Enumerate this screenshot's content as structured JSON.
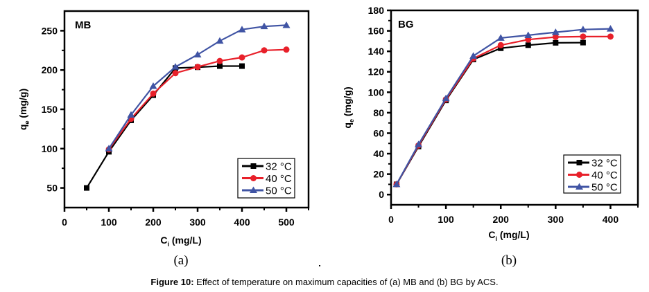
{
  "figure": {
    "caption_bold": "Figure 10:",
    "caption_text": " Effect of temperature on maximum capacities of (a) MB and (b) BG by ACS."
  },
  "chart_data": [
    {
      "type": "line",
      "panel_label": "(a)",
      "title": "MB",
      "xlabel_main": "C",
      "xlabel_sub": "i",
      "xlabel_unit": " (mg/L)",
      "ylabel_main": "q",
      "ylabel_sub": "e",
      "ylabel_unit": " (mg/g)",
      "xlim": [
        0,
        550
      ],
      "ylim": [
        25,
        275
      ],
      "xticks": [
        0,
        100,
        200,
        300,
        400,
        500
      ],
      "xminor": [
        50,
        150,
        250,
        350,
        450,
        550
      ],
      "yticks": [
        50,
        100,
        150,
        200,
        250
      ],
      "yminor": [
        75,
        125,
        175,
        225
      ],
      "grid": false,
      "legend_position": "bottom-right",
      "series": [
        {
          "name": "32 °C",
          "color": "#000000",
          "marker": "square",
          "x": [
            50,
            100,
            150,
            200,
            250,
            300,
            350,
            400
          ],
          "y": [
            50,
            96,
            136,
            168,
            202.5,
            203.5,
            205,
            205
          ]
        },
        {
          "name": "40 °C",
          "color": "#e8202a",
          "marker": "circle",
          "x": [
            100,
            150,
            200,
            250,
            300,
            350,
            400,
            450,
            500
          ],
          "y": [
            99,
            138,
            170,
            196,
            204,
            211.5,
            216,
            225,
            226
          ]
        },
        {
          "name": "50 °C",
          "color": "#4054a4",
          "marker": "triangle",
          "x": [
            100,
            150,
            200,
            250,
            300,
            350,
            400,
            450,
            500
          ],
          "y": [
            100,
            143,
            179.5,
            204,
            219.5,
            237,
            251.5,
            255.5,
            257
          ]
        }
      ]
    },
    {
      "type": "line",
      "panel_label": "(b)",
      "title": "BG",
      "xlabel_main": "C",
      "xlabel_sub": "i",
      "xlabel_unit": " (mg/L)",
      "ylabel_main": "q",
      "ylabel_sub": "e",
      "ylabel_unit": " (mg/g)",
      "xlim": [
        0,
        450
      ],
      "ylim": [
        -10,
        180
      ],
      "xticks": [
        0,
        100,
        200,
        300,
        400
      ],
      "xminor": [
        50,
        150,
        250,
        350,
        450
      ],
      "yticks": [
        0,
        20,
        40,
        60,
        80,
        100,
        120,
        140,
        160,
        180
      ],
      "yminor": [
        10,
        30,
        50,
        70,
        90,
        110,
        130,
        150,
        170
      ],
      "grid": false,
      "legend_position": "bottom-right",
      "series": [
        {
          "name": "32 °C",
          "color": "#000000",
          "marker": "square",
          "x": [
            10,
            50,
            100,
            150,
            200,
            250,
            300,
            350
          ],
          "y": [
            10,
            47,
            92,
            132,
            143,
            146,
            148.3,
            148.5
          ]
        },
        {
          "name": "40 °C",
          "color": "#e8202a",
          "marker": "circle",
          "x": [
            10,
            50,
            100,
            150,
            200,
            250,
            300,
            350,
            400
          ],
          "y": [
            10,
            48,
            93,
            133,
            146,
            151.5,
            154,
            154.4,
            154.4
          ]
        },
        {
          "name": "50 °C",
          "color": "#4054a4",
          "marker": "triangle",
          "x": [
            10,
            50,
            100,
            150,
            200,
            250,
            300,
            350,
            400
          ],
          "y": [
            10,
            49,
            94,
            135.5,
            153,
            155.7,
            158.6,
            161.3,
            162
          ]
        }
      ]
    }
  ]
}
